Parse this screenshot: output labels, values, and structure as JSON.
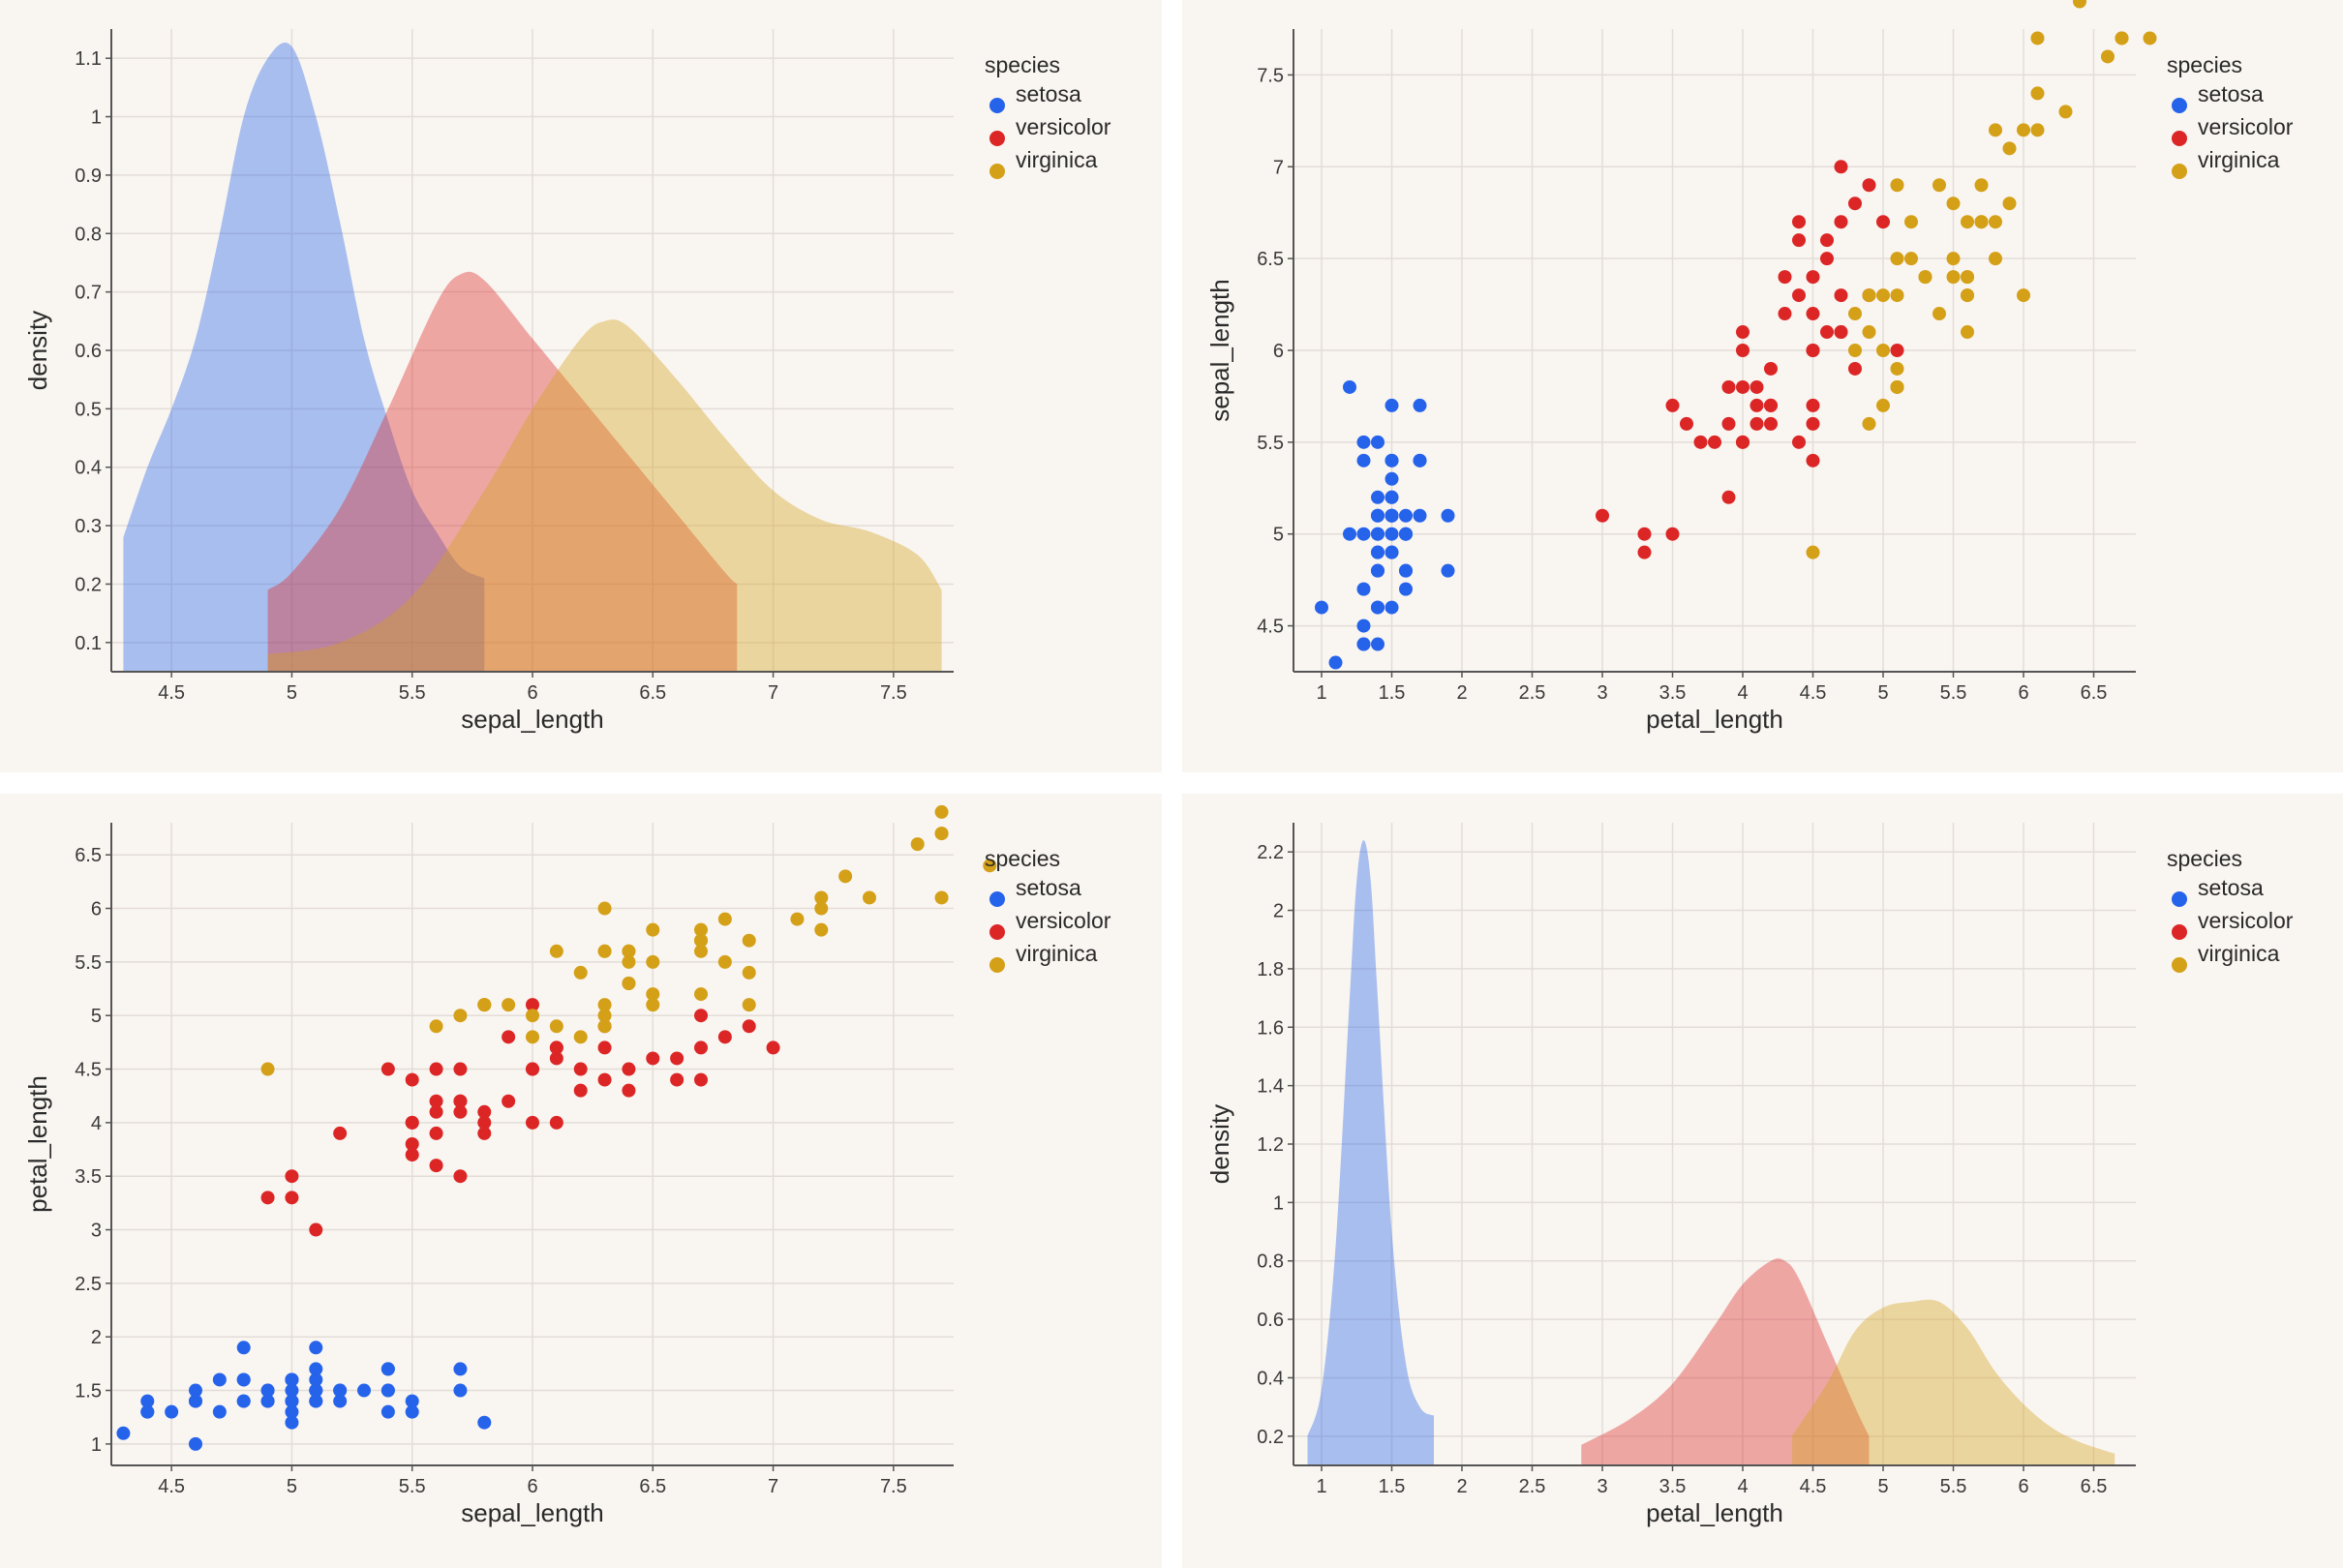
{
  "legend": {
    "title": "species",
    "items": [
      {
        "label": "setosa",
        "color": "#2563eb"
      },
      {
        "label": "versicolor",
        "color": "#dc2626"
      },
      {
        "label": "virginica",
        "color": "#d4a017"
      }
    ]
  },
  "chart_data": [
    {
      "type": "area",
      "xlabel": "sepal_length",
      "ylabel": "density",
      "xlim": [
        4.25,
        7.75
      ],
      "ylim": [
        0.05,
        1.15
      ],
      "xticks": [
        4.5,
        5,
        5.5,
        6,
        6.5,
        7,
        7.5
      ],
      "yticks": [
        0.1,
        0.2,
        0.3,
        0.4,
        0.5,
        0.6,
        0.7,
        0.8,
        0.9,
        1,
        1.1
      ],
      "grid": true,
      "legend_position": "top-right",
      "series": [
        {
          "name": "setosa",
          "x": [
            4.3,
            4.4,
            4.5,
            4.6,
            4.7,
            4.8,
            4.9,
            5.0,
            5.1,
            5.2,
            5.3,
            5.4,
            5.5,
            5.6,
            5.7,
            5.8
          ],
          "y": [
            0.28,
            0.4,
            0.5,
            0.62,
            0.8,
            1.0,
            1.1,
            1.12,
            1.0,
            0.82,
            0.62,
            0.48,
            0.36,
            0.29,
            0.23,
            0.21
          ]
        },
        {
          "name": "versicolor",
          "x": [
            4.9,
            5.0,
            5.2,
            5.4,
            5.6,
            5.7,
            5.8,
            6.0,
            6.2,
            6.4,
            6.6,
            6.8,
            6.85
          ],
          "y": [
            0.19,
            0.22,
            0.33,
            0.5,
            0.68,
            0.73,
            0.72,
            0.62,
            0.52,
            0.42,
            0.32,
            0.22,
            0.2
          ]
        },
        {
          "name": "virginica",
          "x": [
            4.9,
            5.2,
            5.5,
            5.8,
            6.0,
            6.2,
            6.3,
            6.4,
            6.6,
            6.8,
            7.0,
            7.2,
            7.4,
            7.6,
            7.7
          ],
          "y": [
            0.08,
            0.1,
            0.18,
            0.36,
            0.5,
            0.62,
            0.65,
            0.64,
            0.55,
            0.45,
            0.36,
            0.31,
            0.29,
            0.25,
            0.19
          ]
        }
      ]
    },
    {
      "type": "scatter",
      "xlabel": "petal_length",
      "ylabel": "sepal_length",
      "xlim": [
        0.8,
        6.8
      ],
      "ylim": [
        4.25,
        7.75
      ],
      "xticks": [
        1,
        1.5,
        2,
        2.5,
        3,
        3.5,
        4,
        4.5,
        5,
        5.5,
        6,
        6.5
      ],
      "yticks": [
        4.5,
        5,
        5.5,
        6,
        6.5,
        7,
        7.5
      ],
      "grid": true,
      "legend_position": "top-right",
      "series": [
        {
          "name": "setosa",
          "points": [
            [
              1.4,
              5.1
            ],
            [
              1.4,
              4.9
            ],
            [
              1.3,
              4.7
            ],
            [
              1.5,
              4.6
            ],
            [
              1.4,
              5.0
            ],
            [
              1.7,
              5.4
            ],
            [
              1.4,
              4.6
            ],
            [
              1.5,
              5.0
            ],
            [
              1.4,
              4.4
            ],
            [
              1.5,
              4.9
            ],
            [
              1.5,
              5.4
            ],
            [
              1.6,
              4.8
            ],
            [
              1.4,
              4.8
            ],
            [
              1.1,
              4.3
            ],
            [
              1.2,
              5.8
            ],
            [
              1.5,
              5.7
            ],
            [
              1.3,
              5.4
            ],
            [
              1.4,
              5.1
            ],
            [
              1.7,
              5.7
            ],
            [
              1.5,
              5.1
            ],
            [
              1.7,
              5.4
            ],
            [
              1.5,
              5.1
            ],
            [
              1.0,
              4.6
            ],
            [
              1.7,
              5.1
            ],
            [
              1.9,
              4.8
            ],
            [
              1.6,
              5.0
            ],
            [
              1.6,
              5.0
            ],
            [
              1.5,
              5.2
            ],
            [
              1.4,
              5.2
            ],
            [
              1.6,
              4.7
            ],
            [
              1.6,
              4.8
            ],
            [
              1.5,
              5.4
            ],
            [
              1.5,
              5.2
            ],
            [
              1.4,
              5.5
            ],
            [
              1.5,
              4.9
            ],
            [
              1.2,
              5.0
            ],
            [
              1.3,
              5.5
            ],
            [
              1.4,
              4.9
            ],
            [
              1.3,
              4.4
            ],
            [
              1.5,
              5.1
            ],
            [
              1.3,
              5.0
            ],
            [
              1.3,
              4.5
            ],
            [
              1.3,
              4.4
            ],
            [
              1.6,
              5.0
            ],
            [
              1.9,
              5.1
            ],
            [
              1.4,
              4.8
            ],
            [
              1.6,
              5.1
            ],
            [
              1.4,
              4.6
            ],
            [
              1.5,
              5.3
            ],
            [
              1.4,
              5.0
            ]
          ]
        },
        {
          "name": "versicolor",
          "points": [
            [
              4.7,
              7.0
            ],
            [
              4.5,
              6.4
            ],
            [
              4.9,
              6.9
            ],
            [
              4.0,
              5.5
            ],
            [
              4.6,
              6.5
            ],
            [
              4.5,
              5.7
            ],
            [
              4.7,
              6.3
            ],
            [
              3.3,
              4.9
            ],
            [
              4.6,
              6.6
            ],
            [
              3.9,
              5.2
            ],
            [
              3.5,
              5.0
            ],
            [
              4.2,
              5.9
            ],
            [
              4.0,
              6.0
            ],
            [
              4.7,
              6.1
            ],
            [
              3.6,
              5.6
            ],
            [
              4.4,
              6.7
            ],
            [
              4.5,
              5.6
            ],
            [
              4.1,
              5.8
            ],
            [
              4.5,
              6.2
            ],
            [
              3.9,
              5.6
            ],
            [
              4.8,
              5.9
            ],
            [
              4.0,
              6.1
            ],
            [
              4.9,
              6.3
            ],
            [
              4.7,
              6.1
            ],
            [
              4.3,
              6.4
            ],
            [
              4.4,
              6.6
            ],
            [
              4.8,
              6.8
            ],
            [
              5.0,
              6.7
            ],
            [
              4.5,
              6.0
            ],
            [
              3.5,
              5.7
            ],
            [
              3.8,
              5.5
            ],
            [
              3.7,
              5.5
            ],
            [
              3.9,
              5.8
            ],
            [
              5.1,
              6.0
            ],
            [
              4.5,
              5.4
            ],
            [
              4.5,
              6.0
            ],
            [
              4.7,
              6.7
            ],
            [
              4.4,
              6.3
            ],
            [
              4.1,
              5.6
            ],
            [
              4.0,
              5.5
            ],
            [
              4.4,
              5.5
            ],
            [
              4.6,
              6.1
            ],
            [
              4.0,
              5.8
            ],
            [
              3.3,
              5.0
            ],
            [
              4.2,
              5.6
            ],
            [
              4.2,
              5.7
            ],
            [
              4.2,
              5.7
            ],
            [
              4.3,
              6.2
            ],
            [
              3.0,
              5.1
            ],
            [
              4.1,
              5.7
            ]
          ]
        },
        {
          "name": "virginica",
          "points": [
            [
              6.0,
              6.3
            ],
            [
              5.1,
              5.8
            ],
            [
              5.9,
              7.1
            ],
            [
              5.6,
              6.3
            ],
            [
              5.8,
              6.5
            ],
            [
              6.6,
              7.6
            ],
            [
              4.5,
              4.9
            ],
            [
              6.3,
              7.3
            ],
            [
              5.8,
              6.7
            ],
            [
              6.1,
              7.2
            ],
            [
              5.1,
              6.5
            ],
            [
              5.3,
              6.4
            ],
            [
              5.5,
              6.8
            ],
            [
              5.0,
              5.7
            ],
            [
              5.1,
              5.8
            ],
            [
              5.3,
              6.4
            ],
            [
              5.5,
              6.5
            ],
            [
              6.7,
              7.7
            ],
            [
              6.9,
              7.7
            ],
            [
              5.0,
              6.0
            ],
            [
              5.7,
              6.9
            ],
            [
              4.9,
              5.6
            ],
            [
              6.7,
              7.7
            ],
            [
              4.9,
              6.3
            ],
            [
              5.7,
              6.7
            ],
            [
              6.0,
              7.2
            ],
            [
              4.8,
              6.2
            ],
            [
              4.9,
              6.1
            ],
            [
              5.6,
              6.4
            ],
            [
              5.8,
              7.2
            ],
            [
              6.1,
              7.4
            ],
            [
              6.4,
              7.9
            ],
            [
              5.6,
              6.4
            ],
            [
              5.1,
              6.3
            ],
            [
              5.6,
              6.1
            ],
            [
              6.1,
              7.7
            ],
            [
              5.6,
              6.3
            ],
            [
              5.5,
              6.4
            ],
            [
              4.8,
              6.0
            ],
            [
              5.4,
              6.9
            ],
            [
              5.6,
              6.7
            ],
            [
              5.1,
              6.9
            ],
            [
              5.1,
              5.8
            ],
            [
              5.9,
              6.8
            ],
            [
              5.7,
              6.7
            ],
            [
              5.2,
              6.7
            ],
            [
              5.0,
              6.3
            ],
            [
              5.2,
              6.5
            ],
            [
              5.4,
              6.2
            ],
            [
              5.1,
              5.9
            ]
          ]
        }
      ]
    },
    {
      "type": "scatter",
      "xlabel": "sepal_length",
      "ylabel": "petal_length",
      "xlim": [
        4.25,
        7.75
      ],
      "ylim": [
        0.8,
        6.8
      ],
      "xticks": [
        4.5,
        5,
        5.5,
        6,
        6.5,
        7,
        7.5
      ],
      "yticks": [
        1,
        1.5,
        2,
        2.5,
        3,
        3.5,
        4,
        4.5,
        5,
        5.5,
        6,
        6.5
      ],
      "grid": true,
      "legend_position": "top-right",
      "series": [
        {
          "name": "setosa",
          "swap_from": 1
        },
        {
          "name": "versicolor",
          "swap_from": 1
        },
        {
          "name": "virginica",
          "swap_from": 1
        }
      ]
    },
    {
      "type": "area",
      "xlabel": "petal_length",
      "ylabel": "density",
      "xlim": [
        0.8,
        6.8
      ],
      "ylim": [
        0.1,
        2.3
      ],
      "xticks": [
        1,
        1.5,
        2,
        2.5,
        3,
        3.5,
        4,
        4.5,
        5,
        5.5,
        6,
        6.5
      ],
      "yticks": [
        0.2,
        0.4,
        0.6,
        0.8,
        1,
        1.2,
        1.4,
        1.6,
        1.8,
        2,
        2.2
      ],
      "grid": true,
      "legend_position": "top-right",
      "series": [
        {
          "name": "setosa",
          "x": [
            0.9,
            1.0,
            1.1,
            1.2,
            1.25,
            1.3,
            1.35,
            1.4,
            1.5,
            1.6,
            1.7,
            1.8
          ],
          "y": [
            0.2,
            0.36,
            0.85,
            1.7,
            2.1,
            2.24,
            2.1,
            1.7,
            0.9,
            0.45,
            0.3,
            0.27
          ]
        },
        {
          "name": "versicolor",
          "x": [
            2.85,
            3.2,
            3.5,
            3.8,
            4.0,
            4.2,
            4.3,
            4.4,
            4.6,
            4.8,
            4.9
          ],
          "y": [
            0.17,
            0.26,
            0.38,
            0.58,
            0.72,
            0.8,
            0.8,
            0.74,
            0.52,
            0.3,
            0.2
          ]
        },
        {
          "name": "virginica",
          "x": [
            4.35,
            4.6,
            4.8,
            5.0,
            5.2,
            5.4,
            5.6,
            5.8,
            6.0,
            6.2,
            6.4,
            6.65
          ],
          "y": [
            0.2,
            0.38,
            0.56,
            0.64,
            0.66,
            0.66,
            0.57,
            0.42,
            0.31,
            0.23,
            0.18,
            0.14
          ]
        }
      ]
    }
  ]
}
